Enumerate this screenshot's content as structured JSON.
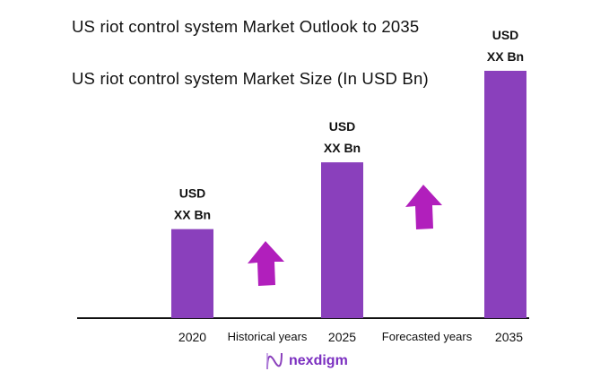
{
  "header": {
    "title": "US riot control system Market Outlook to 2035",
    "subtitle": "US riot control system Market Size (In USD Bn)"
  },
  "chart_data": {
    "type": "bar",
    "categories": [
      "2020",
      "2025",
      "2035"
    ],
    "relative_values": [
      36,
      63,
      100
    ],
    "data_labels": [
      [
        "USD",
        "XX Bn"
      ],
      [
        "USD",
        "XX Bn"
      ],
      [
        "USD",
        "XX Bn"
      ]
    ],
    "period_labels": [
      "Historical years",
      "Forecasted years"
    ],
    "bar_color": "#8a40bc",
    "arrow_color": "#b11fbc",
    "grid": false
  },
  "logo": {
    "text": "nexdigm",
    "color": "#7b2fc0"
  }
}
